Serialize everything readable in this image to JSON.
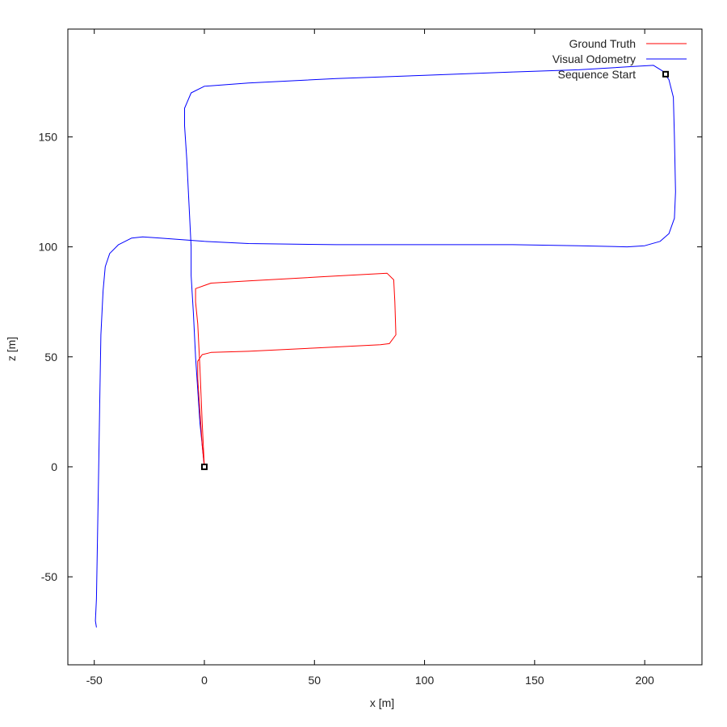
{
  "chart_data": {
    "type": "line",
    "xlabel": "x [m]",
    "ylabel": "z [m]",
    "xlim": [
      -62,
      226
    ],
    "ylim": [
      -90,
      199
    ],
    "xticks": [
      -50,
      0,
      50,
      100,
      150,
      200
    ],
    "yticks": [
      -50,
      0,
      50,
      100,
      150
    ],
    "xtick_labels": [
      "-50",
      "0",
      "50",
      "100",
      "150",
      "200"
    ],
    "ytick_labels": [
      "-50",
      "0",
      "50",
      "100",
      "150"
    ],
    "grid": false,
    "legend_position": "top-right",
    "series": [
      {
        "name": "Ground Truth",
        "color": "#ff0000",
        "points": [
          [
            0,
            0
          ],
          [
            -1,
            10
          ],
          [
            -2,
            25
          ],
          [
            -3,
            40
          ],
          [
            -3,
            48
          ],
          [
            -1,
            51
          ],
          [
            3,
            52
          ],
          [
            20,
            52.5
          ],
          [
            50,
            54
          ],
          [
            80,
            55.5
          ],
          [
            84,
            56
          ],
          [
            87,
            60
          ],
          [
            86.5,
            75
          ],
          [
            86,
            85
          ],
          [
            83,
            88
          ],
          [
            55,
            86.5
          ],
          [
            20,
            84.5
          ],
          [
            3,
            83.5
          ],
          [
            -4,
            81
          ],
          [
            -4,
            75
          ],
          [
            -3,
            65
          ],
          [
            -2,
            45
          ],
          [
            -1,
            20
          ],
          [
            0,
            0
          ]
        ]
      },
      {
        "name": "Visual Odometry",
        "color": "#0000ff",
        "points": [
          [
            0,
            0
          ],
          [
            -2,
            20
          ],
          [
            -4,
            50
          ],
          [
            -5,
            70
          ],
          [
            -6,
            87
          ],
          [
            -6,
            100
          ],
          [
            -7,
            120
          ],
          [
            -8,
            140
          ],
          [
            -9,
            155
          ],
          [
            -9,
            163
          ],
          [
            -6,
            170
          ],
          [
            0,
            173
          ],
          [
            20,
            174.5
          ],
          [
            60,
            176.5
          ],
          [
            100,
            178
          ],
          [
            140,
            179.5
          ],
          [
            170,
            180.5
          ],
          [
            195,
            182
          ],
          [
            204,
            182.5
          ],
          [
            208,
            180
          ],
          [
            211,
            176
          ],
          [
            213,
            168
          ],
          [
            213.5,
            150
          ],
          [
            214,
            125
          ],
          [
            213.5,
            113
          ],
          [
            211,
            106
          ],
          [
            207,
            102.5
          ],
          [
            200,
            100.5
          ],
          [
            192,
            100
          ],
          [
            170,
            100.5
          ],
          [
            140,
            101
          ],
          [
            100,
            101
          ],
          [
            60,
            101
          ],
          [
            20,
            101.5
          ],
          [
            0,
            102.5
          ],
          [
            -20,
            104
          ],
          [
            -28,
            104.5
          ],
          [
            -33,
            104
          ],
          [
            -39,
            101
          ],
          [
            -43,
            97
          ],
          [
            -45,
            91
          ],
          [
            -46,
            80
          ],
          [
            -47,
            60
          ],
          [
            -47.5,
            30
          ],
          [
            -48,
            0
          ],
          [
            -48.5,
            -30
          ],
          [
            -49,
            -60
          ],
          [
            -49.5,
            -70
          ],
          [
            -49,
            -73
          ]
        ]
      }
    ],
    "markers": [
      {
        "name": "Sequence Start",
        "points": [
          [
            0,
            0
          ],
          [
            209.5,
            178.5
          ]
        ]
      }
    ]
  }
}
